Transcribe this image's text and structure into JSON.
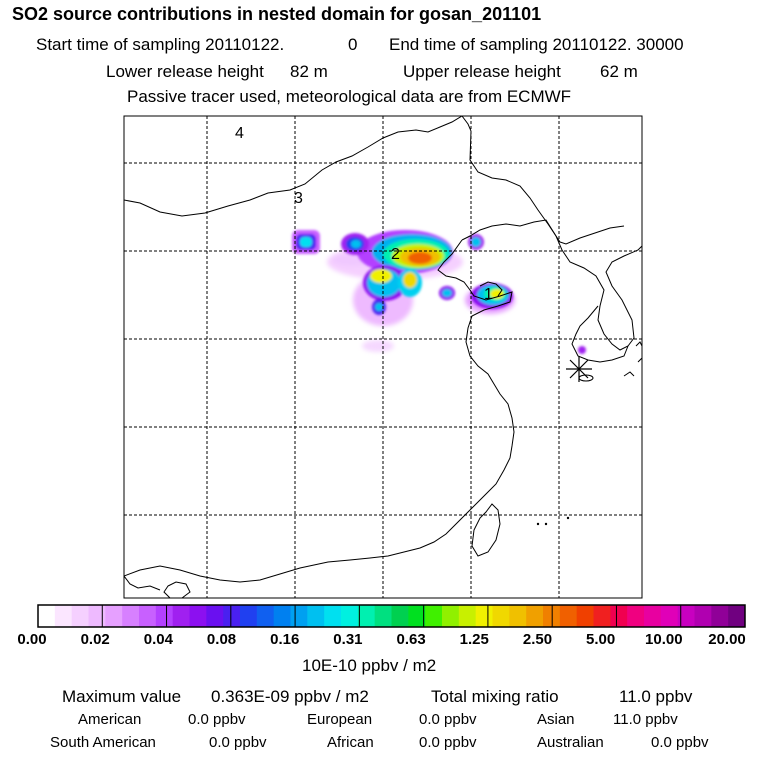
{
  "header": {
    "title": "SO2 source contributions in nested domain for gosan_201101",
    "start_label": "Start time of sampling 20110122.",
    "start_time": "0",
    "end_label": "End time of sampling 20110122. 30000",
    "lower_label": "Lower release height",
    "lower_value": "82 m",
    "upper_label": "Upper release height",
    "upper_value": "62 m",
    "note": "Passive tracer used, meteorological data are from ECMWF"
  },
  "map": {
    "grid_labels": [
      "4",
      "3",
      "2",
      "1"
    ],
    "receptor_marker": "asterisk-icon"
  },
  "colorbar": {
    "tick_labels": [
      "0.00",
      "0.02",
      "0.04",
      "0.08",
      "0.16",
      "0.31",
      "0.63",
      "1.25",
      "2.50",
      "5.00",
      "10.00",
      "20.00"
    ],
    "units": "10E-10 ppbv / m2",
    "colors": [
      "#ffffff",
      "#fbe6ff",
      "#f5d0ff",
      "#eebaff",
      "#e6a0ff",
      "#d780ff",
      "#c860ff",
      "#b440ff",
      "#a020f0",
      "#8c10f0",
      "#6a10f0",
      "#4a20f0",
      "#2040f0",
      "#1060f0",
      "#0080f0",
      "#00a0f0",
      "#00c0f0",
      "#00e0f0",
      "#00f0e0",
      "#00f0b0",
      "#00e080",
      "#00d050",
      "#00e020",
      "#40f000",
      "#90f000",
      "#c8f000",
      "#f0f000",
      "#f0d800",
      "#f0c000",
      "#f0a000",
      "#f08000",
      "#f06000",
      "#f04000",
      "#f02020",
      "#f00050",
      "#f00080",
      "#e800a0",
      "#e000b8",
      "#c800c0",
      "#b000b0",
      "#900098",
      "#700080"
    ]
  },
  "summary": {
    "max_label": "Maximum value",
    "max_value": "0.363E-09 ppbv / m2",
    "total_label": "Total mixing ratio",
    "total_value": "11.0 ppbv",
    "regions": [
      {
        "name": "American",
        "value": "0.0 ppbv"
      },
      {
        "name": "European",
        "value": "0.0 ppbv"
      },
      {
        "name": "Asian",
        "value": "11.0 ppbv"
      },
      {
        "name": "South American",
        "value": "0.0 ppbv"
      },
      {
        "name": "African",
        "value": "0.0 ppbv"
      },
      {
        "name": "Australian",
        "value": "0.0 ppbv"
      }
    ]
  }
}
